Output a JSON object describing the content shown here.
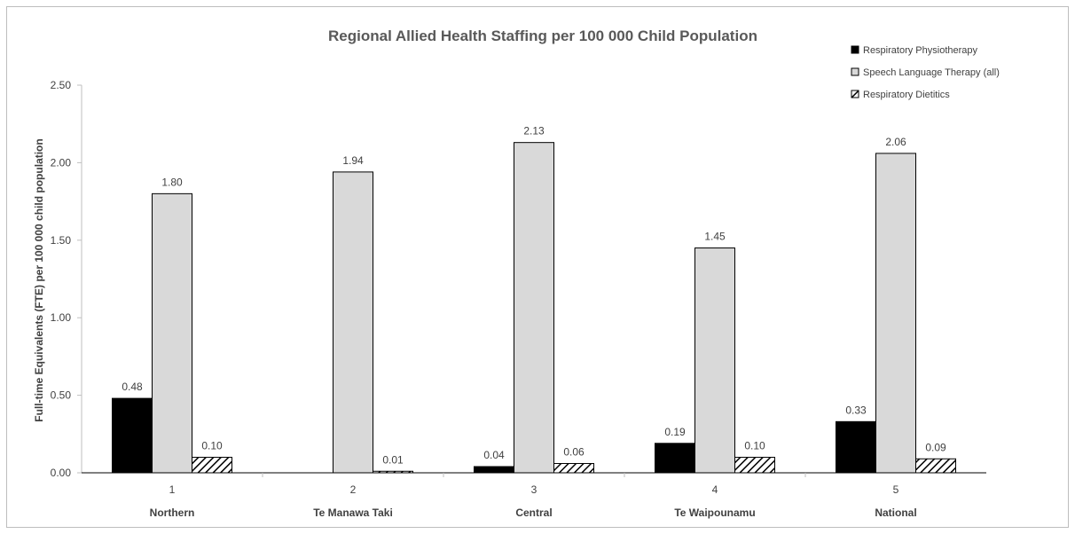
{
  "chart_data": {
    "type": "bar",
    "title": "Regional Allied Health Staffing per 100 000 Child Population",
    "ylabel": "Full-time Equivalents (FTE) per 100 000 child population",
    "xlabel": "",
    "ylim": [
      0,
      2.5
    ],
    "yticks": [
      "0.00",
      "0.50",
      "1.00",
      "1.50",
      "2.00",
      "2.50"
    ],
    "categories": [
      "1",
      "2",
      "3",
      "4",
      "5"
    ],
    "category_names": [
      "Northern",
      "Te Manawa Taki",
      "Central",
      "Te Waipounamu",
      "National"
    ],
    "legend_position": "top-right",
    "grid": false,
    "series": [
      {
        "name": "Respiratory Physiotherapy",
        "values": [
          0.48,
          0,
          0.04,
          0.19,
          0.33
        ],
        "labels": [
          "0.48",
          "",
          "0.04",
          "0.19",
          "0.33"
        ],
        "fill": "#000000",
        "pattern": "solid"
      },
      {
        "name": "Speech Language Therapy (all)",
        "values": [
          1.8,
          1.94,
          2.13,
          1.45,
          2.06
        ],
        "labels": [
          "1.80",
          "1.94",
          "2.13",
          "1.45",
          "2.06"
        ],
        "fill": "#d9d9d9",
        "pattern": "solid"
      },
      {
        "name": "Respiratory Dietitics",
        "values": [
          0.1,
          0.01,
          0.06,
          0.1,
          0.09
        ],
        "labels": [
          "0.10",
          "0.01",
          "0.06",
          "0.10",
          "0.09"
        ],
        "fill": "#ffffff",
        "pattern": "diagonal-hatch"
      }
    ]
  }
}
